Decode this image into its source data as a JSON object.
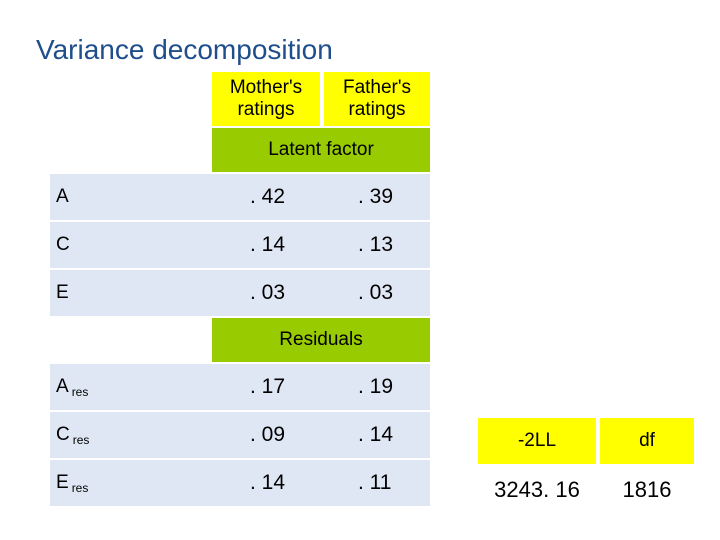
{
  "title": "Variance decomposition",
  "columns": [
    "Mother's ratings",
    "Father's ratings"
  ],
  "latent_section": {
    "label": "Latent factor",
    "rows": [
      {
        "label": "A",
        "subscript": "",
        "mother": ". 42",
        "father": ". 39"
      },
      {
        "label": "C",
        "subscript": "",
        "mother": ". 14",
        "father": ". 13"
      },
      {
        "label": "E",
        "subscript": "",
        "mother": ". 03",
        "father": ". 03"
      }
    ]
  },
  "residual_section": {
    "label": "Residuals",
    "rows": [
      {
        "label": "A",
        "subscript": "res",
        "mother": ". 17",
        "father": ". 19"
      },
      {
        "label": "C",
        "subscript": "res",
        "mother": ". 09",
        "father": ". 14"
      },
      {
        "label": "E",
        "subscript": "res",
        "mother": ". 14",
        "father": ". 11"
      }
    ]
  },
  "fit": {
    "headers": [
      "-2LL",
      "df"
    ],
    "values": [
      "3243. 16",
      "1816"
    ]
  },
  "colors": {
    "title": "#1f4e8c",
    "header": "#ffff00",
    "section": "#99cc00",
    "row_band": "#dfe6f4"
  }
}
